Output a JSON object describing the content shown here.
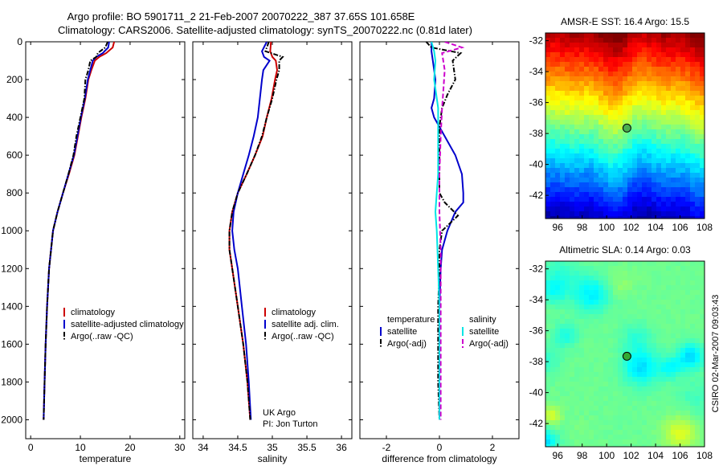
{
  "header": {
    "line1": "Argo profile: BO 5901711_2 21-Feb-2007 20070222_387 37.65S 101.658E",
    "line2": "Climatology: CARS2006. Satellite-adjusted climatology: synTS_20070222.nc (0.81d later)"
  },
  "credit": {
    "line1": "UK Argo",
    "line2": "PI: Jon Turton"
  },
  "footer": "CSIRO 02-Mar-2007 09:03:43",
  "chart_data": [
    {
      "type": "line",
      "panel": "temperature",
      "xlabel": "temperature",
      "ylabel": "",
      "xlim": [
        -1,
        31
      ],
      "ylim": [
        2100,
        0
      ],
      "xticks": [
        0,
        10,
        20,
        30
      ],
      "yticks": [
        0,
        200,
        400,
        600,
        800,
        1000,
        1200,
        1400,
        1600,
        1800,
        2000
      ],
      "legend_position": "lower-middle",
      "series": [
        {
          "name": "climatology",
          "color": "#cc0000",
          "style": "solid",
          "x": [
            16.8,
            16.5,
            15.2,
            13.8,
            12.9,
            12.2,
            11.6,
            11.0,
            10.2,
            9.5,
            8.8,
            7.7,
            6.5,
            5.4,
            4.5,
            3.7,
            3.3,
            3.0,
            2.8,
            2.6
          ],
          "y": [
            0,
            30,
            60,
            80,
            100,
            150,
            200,
            300,
            400,
            500,
            600,
            700,
            800,
            900,
            1000,
            1200,
            1400,
            1600,
            1800,
            2000
          ]
        },
        {
          "name": "satellite-adjusted climatology",
          "color": "#0000cc",
          "style": "solid",
          "x": [
            15.8,
            15.6,
            14.5,
            13.2,
            12.5,
            12.0,
            11.5,
            10.9,
            10.1,
            9.4,
            8.7,
            7.6,
            6.5,
            5.4,
            4.5,
            3.7,
            3.3,
            3.0,
            2.8,
            2.6
          ],
          "y": [
            0,
            30,
            60,
            80,
            100,
            150,
            200,
            300,
            400,
            500,
            600,
            700,
            800,
            900,
            1000,
            1200,
            1400,
            1600,
            1800,
            2000
          ]
        },
        {
          "name": "Argo(..raw -QC)",
          "color": "#000000",
          "style": "dashdot",
          "x": [
            15.5,
            15.0,
            13.5,
            13.2,
            12.0,
            11.6,
            11.0,
            10.8,
            10.0,
            9.2,
            8.6,
            7.6,
            6.5,
            5.4,
            4.5,
            3.7,
            3.3,
            3.0,
            2.8,
            2.6
          ],
          "y": [
            0,
            30,
            60,
            80,
            100,
            150,
            200,
            300,
            400,
            500,
            600,
            700,
            800,
            900,
            1000,
            1200,
            1400,
            1600,
            1800,
            2000
          ]
        }
      ],
      "legend": [
        "climatology",
        "satellite-adjusted climatology",
        "Argo(..raw -QC)"
      ]
    },
    {
      "type": "line",
      "panel": "salinity",
      "xlabel": "salinity",
      "ylabel": "",
      "xlim": [
        33.85,
        36.15
      ],
      "ylim": [
        2100,
        0
      ],
      "xticks": [
        34,
        34.5,
        35,
        35.5,
        36
      ],
      "legend_position": "lower-middle",
      "series": [
        {
          "name": "climatology",
          "color": "#cc0000",
          "style": "solid",
          "x": [
            34.98,
            34.97,
            35.0,
            35.05,
            35.07,
            35.04,
            34.99,
            34.92,
            34.86,
            34.75,
            34.63,
            34.5,
            34.42,
            34.38,
            34.38,
            34.42,
            34.5,
            34.58,
            34.64,
            34.68
          ],
          "y": [
            0,
            50,
            80,
            100,
            150,
            200,
            300,
            400,
            500,
            600,
            700,
            800,
            900,
            1000,
            1100,
            1200,
            1400,
            1600,
            1800,
            2000
          ]
        },
        {
          "name": "satellite adj. clim.",
          "color": "#0000cc",
          "style": "solid",
          "x": [
            34.92,
            34.85,
            34.88,
            34.96,
            34.87,
            34.85,
            34.82,
            34.79,
            34.73,
            34.66,
            34.58,
            34.5,
            34.44,
            34.42,
            34.45,
            34.5,
            34.56,
            34.62,
            34.66,
            34.69
          ],
          "y": [
            0,
            50,
            80,
            100,
            150,
            200,
            300,
            400,
            500,
            600,
            700,
            800,
            900,
            1000,
            1100,
            1200,
            1400,
            1600,
            1800,
            2000
          ]
        },
        {
          "name": "Argo(..raw -QC)",
          "color": "#000000",
          "style": "dashdot",
          "x": [
            34.95,
            34.9,
            35.15,
            35.1,
            35.1,
            35.06,
            35.0,
            34.92,
            34.85,
            34.75,
            34.63,
            34.5,
            34.42,
            34.38,
            34.38,
            34.42,
            34.5,
            34.58,
            34.64,
            34.68
          ],
          "y": [
            0,
            50,
            80,
            100,
            150,
            200,
            300,
            400,
            500,
            600,
            700,
            800,
            900,
            1000,
            1100,
            1200,
            1400,
            1600,
            1800,
            2000
          ]
        }
      ],
      "legend": [
        "climatology",
        "satellite adj. clim.",
        "Argo(..raw -QC)"
      ]
    },
    {
      "type": "line",
      "panel": "difference",
      "xlabel": "difference from climatology",
      "ylabel": "",
      "xlim": [
        -3,
        3
      ],
      "ylim": [
        2100,
        0
      ],
      "xticks": [
        -2,
        0,
        2
      ],
      "legend_position": "lower-middle",
      "series": [
        {
          "name": "satellite",
          "group": "temperature",
          "color": "#0000cc",
          "style": "solid",
          "x": [
            -0.3,
            -0.3,
            -0.25,
            -0.15,
            -0.2,
            -0.3,
            -0.2,
            0.2,
            0.6,
            0.85,
            0.9,
            0.9,
            0.6,
            0.3,
            0.1,
            0.05,
            0,
            0,
            0,
            0
          ],
          "y": [
            0,
            50,
            100,
            200,
            300,
            350,
            400,
            500,
            600,
            700,
            800,
            850,
            900,
            1000,
            1100,
            1200,
            1400,
            1600,
            1800,
            2000
          ]
        },
        {
          "name": "Argo(-adj)",
          "group": "temperature",
          "color": "#000000",
          "style": "dashdot",
          "x": [
            -0.5,
            -0.3,
            0.8,
            0.5,
            0.6,
            0.3,
            0.1,
            0,
            0,
            0,
            0,
            0.2,
            0.7,
            0.1,
            0,
            0,
            -0.05,
            -0.05,
            -0.05,
            0
          ],
          "y": [
            0,
            30,
            60,
            100,
            200,
            280,
            350,
            450,
            550,
            700,
            800,
            850,
            920,
            1000,
            1100,
            1200,
            1400,
            1600,
            1800,
            2000
          ]
        },
        {
          "name": "satellite",
          "group": "salinity",
          "color": "#00e5e5",
          "style": "solid",
          "x": [
            -0.3,
            -0.2,
            -0.15,
            -0.2,
            -0.05,
            -0.05,
            -0.05,
            -0.05,
            -0.1,
            -0.15,
            -0.1,
            -0.05,
            0,
            0,
            0,
            0
          ],
          "y": [
            0,
            50,
            100,
            200,
            350,
            500,
            600,
            700,
            800,
            900,
            1000,
            1200,
            1400,
            1600,
            1800,
            2000
          ]
        },
        {
          "name": "Argo(-adj)",
          "group": "salinity",
          "color": "#cc00cc",
          "style": "dashed",
          "x": [
            0.2,
            0.85,
            0.1,
            0.2,
            0.15,
            0.1,
            0.05,
            0,
            0,
            0.05,
            0.05,
            0.05,
            0.05,
            0.05
          ],
          "y": [
            0,
            30,
            60,
            150,
            250,
            350,
            500,
            700,
            900,
            1100,
            1300,
            1500,
            1800,
            2000
          ]
        }
      ],
      "legend": [
        "temperature",
        "salinity",
        "satellite",
        "satellite",
        "Argo(-adj)",
        "Argo(-adj)"
      ]
    },
    {
      "type": "heatmap",
      "panel": "sst-map",
      "title": "AMSR-E SST: 16.4  Argo: 15.5",
      "xlim": [
        95,
        108
      ],
      "ylim": [
        -43.5,
        -31.5
      ],
      "xticks": [
        96,
        98,
        100,
        102,
        104,
        106,
        108
      ],
      "yticks": [
        -32,
        -34,
        -36,
        -38,
        -40,
        -42
      ],
      "profile_location": {
        "lon": 101.658,
        "lat": -37.65
      },
      "marker_color": "#4caf50"
    },
    {
      "type": "heatmap",
      "panel": "sla-map",
      "title": "Altimetric SLA: 0.14  Argo: 0.03",
      "xlim": [
        95,
        108
      ],
      "ylim": [
        -43.5,
        -31.5
      ],
      "xticks": [
        96,
        98,
        100,
        102,
        104,
        106,
        108
      ],
      "yticks": [
        -32,
        -34,
        -36,
        -38,
        -40,
        -42
      ],
      "profile_location": {
        "lon": 101.658,
        "lat": -37.65
      },
      "marker_color": "#33aa33"
    }
  ]
}
